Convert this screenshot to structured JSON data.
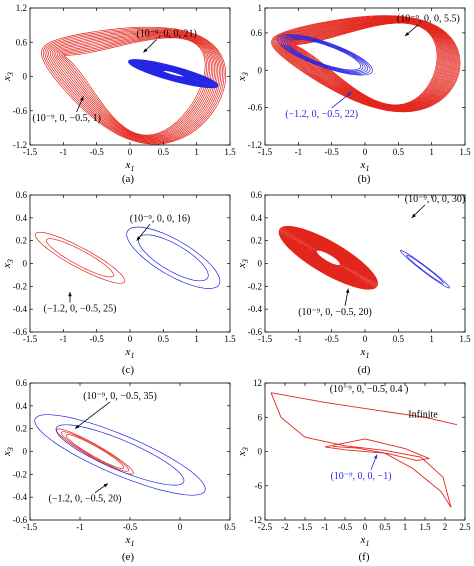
{
  "figure": {
    "colors": {
      "red": "#e3261c",
      "blue": "#2626e6",
      "black": "#000000"
    }
  },
  "chart_data": [
    {
      "id": "a",
      "type": "line",
      "caption": "(a)",
      "xlim": [
        -1.5,
        1.5
      ],
      "ylim": [
        -1.2,
        1.2
      ],
      "xticks": [
        -1.5,
        -1,
        -0.5,
        0,
        0.5,
        1,
        1.5
      ],
      "xtick_labels": [
        "-1.5",
        "-1",
        "-0.5",
        "0",
        "0.5",
        "1",
        "1.5"
      ],
      "yticks": [
        -1.2,
        -0.6,
        0,
        0.6,
        1.2
      ],
      "ytick_labels": [
        "-1.2",
        "-0.6",
        "0",
        "0.6",
        "1.2"
      ],
      "xlabel": "x1",
      "ylabel": "x3",
      "series": [
        {
          "color": "red",
          "shape": "double-scroll",
          "cx": 0.0,
          "cy": 0.0,
          "rx": 1.45,
          "ry": 0.95,
          "angle": -25,
          "loops": 14,
          "filled": false
        },
        {
          "color": "blue",
          "shape": "ellipse",
          "cx": 0.65,
          "cy": 0.05,
          "rx": 0.72,
          "ry": 0.12,
          "angle": -22,
          "loops": 30,
          "filled": true
        }
      ],
      "annotations": [
        {
          "text": "(10⁻⁹, 0, 0, 21)",
          "color": "black",
          "x": 0.55,
          "y": 0.7,
          "arrow_to": [
            0.2,
            0.42
          ]
        },
        {
          "text": "(10⁻⁹, 0, −0.5, 1)",
          "color": "black",
          "x": -0.95,
          "y": -0.78,
          "arrow_to": [
            -0.7,
            -0.35
          ]
        }
      ]
    },
    {
      "id": "b",
      "type": "line",
      "caption": "(b)",
      "xlim": [
        -1.5,
        1.5
      ],
      "ylim": [
        -1.2,
        1
      ],
      "xticks": [
        -1.5,
        -1,
        -0.5,
        0,
        0.5,
        1,
        1.5
      ],
      "xtick_labels": [
        "-1.5",
        "-1",
        "-0.5",
        "0",
        "0.5",
        "1",
        "1.5"
      ],
      "yticks": [
        -1.2,
        -0.6,
        0,
        0.6,
        1
      ],
      "ytick_labels": [
        "-1.2",
        "-0.6",
        "0",
        "0.6",
        "1"
      ],
      "xlabel": "x1",
      "ylabel": "x3",
      "series": [
        {
          "color": "red",
          "shape": "double-scroll",
          "cx": 0.0,
          "cy": 0.2,
          "rx": 1.45,
          "ry": 0.7,
          "angle": -15,
          "loops": 24,
          "filled": false
        },
        {
          "color": "blue",
          "shape": "ellipse",
          "cx": -0.6,
          "cy": 0.25,
          "rx": 0.8,
          "ry": 0.2,
          "angle": -28,
          "loops": 6,
          "filled": false
        }
      ],
      "annotations": [
        {
          "text": "(10⁻⁹, 0, 0, 5.5)",
          "color": "black",
          "x": 0.95,
          "y": 0.78,
          "arrow_to": [
            0.6,
            0.55
          ]
        },
        {
          "text": "(−1.2, 0, −0.5, 22)",
          "color": "blue",
          "x": -0.65,
          "y": -0.75,
          "arrow_to": [
            -0.2,
            -0.35
          ]
        }
      ]
    },
    {
      "id": "c",
      "type": "line",
      "caption": "(c)",
      "xlim": [
        -1.5,
        1.5
      ],
      "ylim": [
        -0.6,
        0.6
      ],
      "xticks": [
        -1.5,
        -1,
        -0.5,
        0,
        0.5,
        1,
        1.5
      ],
      "xtick_labels": [
        "-1.5",
        "-1",
        "-0.5",
        "0",
        "0.5",
        "1",
        "1.5"
      ],
      "yticks": [
        -0.6,
        -0.4,
        -0.2,
        0,
        0.2,
        0.4,
        0.6
      ],
      "ytick_labels": [
        "-0.6",
        "-0.4",
        "-0.2",
        "0",
        "0.2",
        "0.4",
        "0.6"
      ],
      "xlabel": "x1",
      "ylabel": "x3",
      "series": [
        {
          "color": "red",
          "shape": "ellipse",
          "cx": -0.75,
          "cy": 0.05,
          "rx": 0.85,
          "ry": 0.1,
          "angle": -38,
          "loops": 2,
          "filled": false
        },
        {
          "color": "blue",
          "shape": "ellipse",
          "cx": 0.65,
          "cy": 0.05,
          "rx": 0.9,
          "ry": 0.18,
          "angle": -40,
          "loops": 2,
          "filled": false
        }
      ],
      "annotations": [
        {
          "text": "(10⁻⁹, 0, 0, 16)",
          "color": "black",
          "x": 0.45,
          "y": 0.37,
          "arrow_to": [
            0.1,
            0.2
          ]
        },
        {
          "text": "(−1.2, 0, −0.5, 25)",
          "color": "black",
          "x": -0.75,
          "y": -0.42,
          "arrow_to": [
            -0.9,
            -0.25
          ]
        }
      ]
    },
    {
      "id": "d",
      "type": "line",
      "caption": "(d)",
      "xlim": [
        -1.5,
        1.5
      ],
      "ylim": [
        -0.6,
        0.6
      ],
      "xticks": [
        -1.5,
        -1,
        -0.5,
        0,
        0.5,
        1,
        1.5
      ],
      "xtick_labels": [
        "-1.5",
        "-1",
        "-0.5",
        "0",
        "0.5",
        "1",
        "1.5"
      ],
      "yticks": [
        -0.6,
        -0.4,
        -0.2,
        0,
        0.2,
        0.4,
        0.6
      ],
      "ytick_labels": [
        "-0.6",
        "-0.4",
        "-0.2",
        "0",
        "0.2",
        "0.4",
        "0.6"
      ],
      "xlabel": "x1",
      "ylabel": "x3",
      "series": [
        {
          "color": "red",
          "shape": "ellipse",
          "cx": -0.55,
          "cy": 0.05,
          "rx": 0.95,
          "ry": 0.16,
          "angle": -40,
          "loops": 30,
          "filled": true
        },
        {
          "color": "blue",
          "shape": "ellipse",
          "cx": 0.9,
          "cy": -0.05,
          "rx": 0.55,
          "ry": 0.03,
          "angle": -48,
          "loops": 2,
          "filled": false
        }
      ],
      "annotations": [
        {
          "text": "(10⁻⁹, 0, 0, 30)",
          "color": "black",
          "x": 1.05,
          "y": 0.54,
          "arrow_to": [
            0.7,
            0.4
          ]
        },
        {
          "text": "(10⁻⁹, 0, −0.5, 20)",
          "color": "black",
          "x": -0.45,
          "y": -0.45,
          "arrow_to": [
            -0.25,
            -0.22
          ]
        }
      ]
    },
    {
      "id": "e",
      "type": "line",
      "caption": "(e)",
      "xlim": [
        -1.5,
        0.5
      ],
      "ylim": [
        -0.6,
        0.6
      ],
      "xticks": [
        -1.5,
        -1,
        -0.5,
        0,
        0.5
      ],
      "xtick_labels": [
        "-1.5",
        "-1",
        "-0.5",
        "0",
        "0.5"
      ],
      "yticks": [
        -0.6,
        -0.4,
        -0.2,
        0,
        0.2,
        0.4,
        0.6
      ],
      "ytick_labels": [
        "-0.6",
        "-0.4",
        "-0.2",
        "0",
        "0.2",
        "0.4",
        "0.6"
      ],
      "xlabel": "x1",
      "ylabel": "x3",
      "series": [
        {
          "color": "red",
          "shape": "ellipse",
          "cx": -0.85,
          "cy": 0.0,
          "rx": 0.5,
          "ry": 0.06,
          "angle": -40,
          "loops": 3,
          "filled": false
        },
        {
          "color": "blue",
          "shape": "ellipse",
          "cx": -0.6,
          "cy": -0.03,
          "rx": 1.0,
          "ry": 0.18,
          "angle": -32,
          "loops": 2,
          "filled": false
        }
      ],
      "annotations": [
        {
          "text": "(10⁻⁹, 0, −0.5, 35)",
          "color": "black",
          "x": -0.6,
          "y": 0.46,
          "arrow_to": [
            -1.05,
            0.2
          ]
        },
        {
          "text": "(−1.2, 0, −0.5, 20)",
          "color": "black",
          "x": -0.95,
          "y": -0.44,
          "arrow_to": [
            -0.72,
            -0.28
          ]
        }
      ]
    },
    {
      "id": "f",
      "type": "line",
      "caption": "(f)",
      "xlim": [
        -2.5,
        2.5
      ],
      "ylim": [
        -12,
        12
      ],
      "xticks": [
        -2.5,
        -2,
        -1.5,
        -1,
        -0.5,
        0,
        0.5,
        1,
        1.5,
        2,
        2.5
      ],
      "xtick_labels": [
        "-2.5",
        "-2",
        "-1.5",
        "-1",
        "-0.5",
        "0",
        "0.5",
        "1",
        "1.5",
        "2",
        "2.5"
      ],
      "yticks": [
        -12,
        -6,
        0,
        6,
        12
      ],
      "ytick_labels": [
        "-12",
        "-6",
        "0",
        "6",
        "12"
      ],
      "xlabel": "x1",
      "ylabel": "x3",
      "series": [
        {
          "color": "red",
          "shape": "polyline",
          "points": [
            [
              -2.35,
              10.3
            ],
            [
              -1.0,
              8.6
            ],
            [
              0.5,
              7.0
            ],
            [
              1.5,
              6.0
            ],
            [
              2.3,
              4.7
            ]
          ]
        },
        {
          "color": "red",
          "shape": "polyline",
          "points": [
            [
              -2.35,
              10.3
            ],
            [
              -2.1,
              6.0
            ],
            [
              -1.5,
              2.5
            ],
            [
              -0.5,
              1.0
            ],
            [
              0.5,
              0.2
            ],
            [
              1.4,
              -1.0
            ],
            [
              1.95,
              -4.5
            ],
            [
              2.15,
              -9.8
            ],
            [
              1.9,
              -7.0
            ],
            [
              1.2,
              -3.0
            ],
            [
              0.5,
              -0.3
            ],
            [
              -0.5,
              0.3
            ],
            [
              -1.0,
              0.8
            ],
            [
              0.0,
              2.2
            ],
            [
              1.0,
              0.5
            ],
            [
              1.6,
              -1.2
            ],
            [
              1.3,
              -1.6
            ],
            [
              0.6,
              -0.4
            ],
            [
              -0.2,
              0.6
            ],
            [
              -0.8,
              0.9
            ]
          ]
        }
      ],
      "annotations": [
        {
          "text": "(10⁻⁹, 0, −0.5, 0.4 )",
          "color": "black",
          "x": 0.1,
          "y": 10.4,
          "arrow_to": null
        },
        {
          "text": "Infinite",
          "color": "black",
          "x": 1.45,
          "y": 6.0,
          "arrow_to": null
        },
        {
          "text": "(10⁻⁹, 0, 0, −1)",
          "color": "blue",
          "x": -0.1,
          "y": -4.8,
          "arrow_to": [
            0.3,
            -0.5
          ]
        }
      ]
    }
  ]
}
